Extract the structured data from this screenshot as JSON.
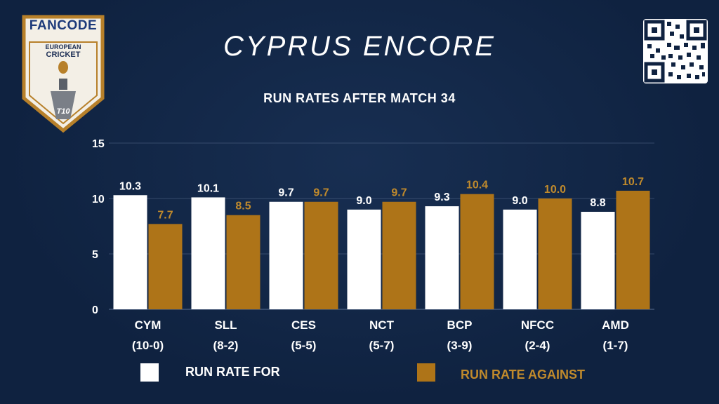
{
  "header": {
    "brand": "FANCODE",
    "logo_line1": "EUROPEAN",
    "logo_line2": "CRICKET",
    "logo_badge": "T10",
    "title": "CYPRUS ENCORE",
    "subtitle": "RUN RATES AFTER MATCH 34"
  },
  "colors": {
    "background": "#0f2240",
    "run_rate_for": "#ffffff",
    "run_rate_against": "#ae7418",
    "gold": "#c08a2c"
  },
  "chart_data": {
    "type": "bar",
    "title": "RUN RATES AFTER MATCH 34",
    "categories": [
      "CYM",
      "SLL",
      "CES",
      "NCT",
      "BCP",
      "NFCC",
      "AMD"
    ],
    "category_records": [
      "(10-0)",
      "(8-2)",
      "(5-5)",
      "(5-7)",
      "(3-9)",
      "(2-4)",
      "(1-7)"
    ],
    "series": [
      {
        "name": "RUN RATE FOR",
        "color": "#ffffff",
        "values": [
          10.3,
          10.1,
          9.7,
          9.0,
          9.3,
          9.0,
          8.8
        ],
        "labels": [
          "10.3",
          "10.1",
          "9.7",
          "9.0",
          "9.3",
          "9.0",
          "8.8"
        ]
      },
      {
        "name": "RUN RATE AGAINST",
        "color": "#ae7418",
        "values": [
          7.7,
          8.5,
          9.7,
          9.7,
          10.4,
          10.0,
          10.7
        ],
        "labels": [
          "7.7",
          "8.5",
          "9.7",
          "9.7",
          "10.4",
          "10.0",
          "10.7"
        ]
      }
    ],
    "ylim": [
      0,
      15
    ],
    "yticks": [
      "0",
      "5",
      "10",
      "15"
    ],
    "ytick_values": [
      0,
      5,
      10,
      15
    ],
    "grid": true,
    "legend_position": "bottom"
  },
  "legend": {
    "for_label": "RUN RATE FOR",
    "against_label": "RUN RATE AGAINST"
  }
}
